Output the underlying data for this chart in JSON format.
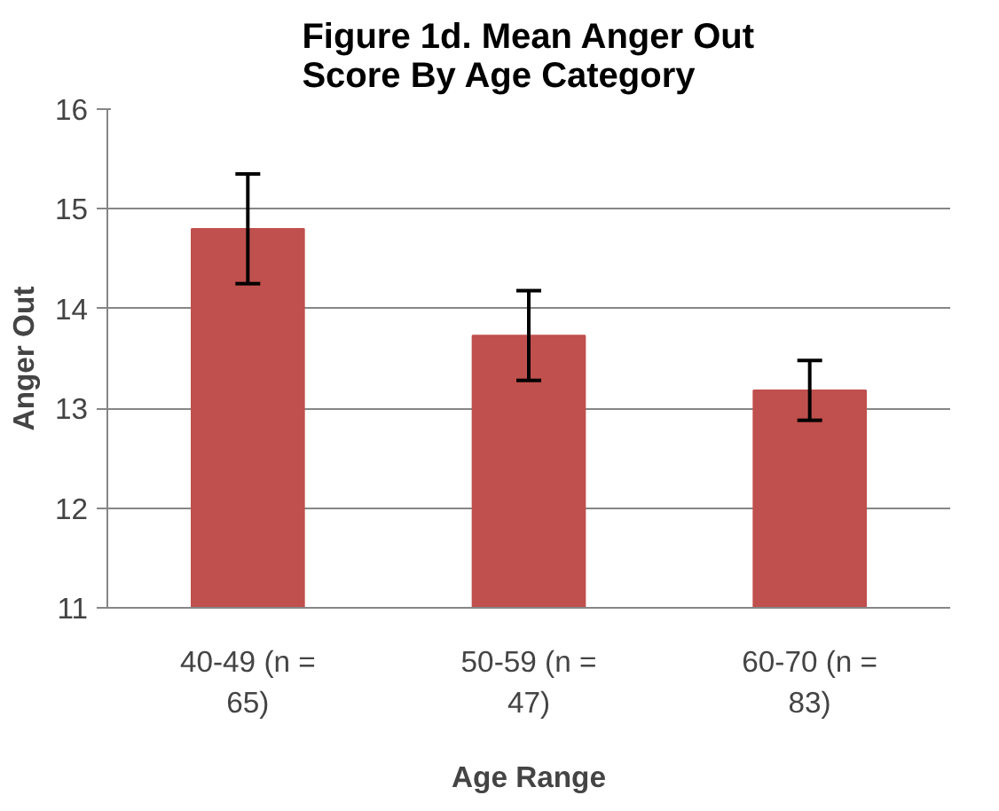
{
  "chart_data": {
    "type": "bar",
    "title": "Figure 1d. Mean Anger Out Score By Age Category",
    "xlabel": "Age Range",
    "ylabel": "Anger Out",
    "categories": [
      "40-49 (n = 65)",
      "50-59 (n = 47)",
      "60-70 (n = 83)"
    ],
    "values": [
      14.8,
      13.73,
      13.18
    ],
    "errors": [
      0.55,
      0.45,
      0.3
    ],
    "color": "#c0504d",
    "ylim": [
      11,
      16
    ],
    "yticks": [
      11,
      12,
      13,
      14,
      15,
      16
    ],
    "grid": "y"
  }
}
